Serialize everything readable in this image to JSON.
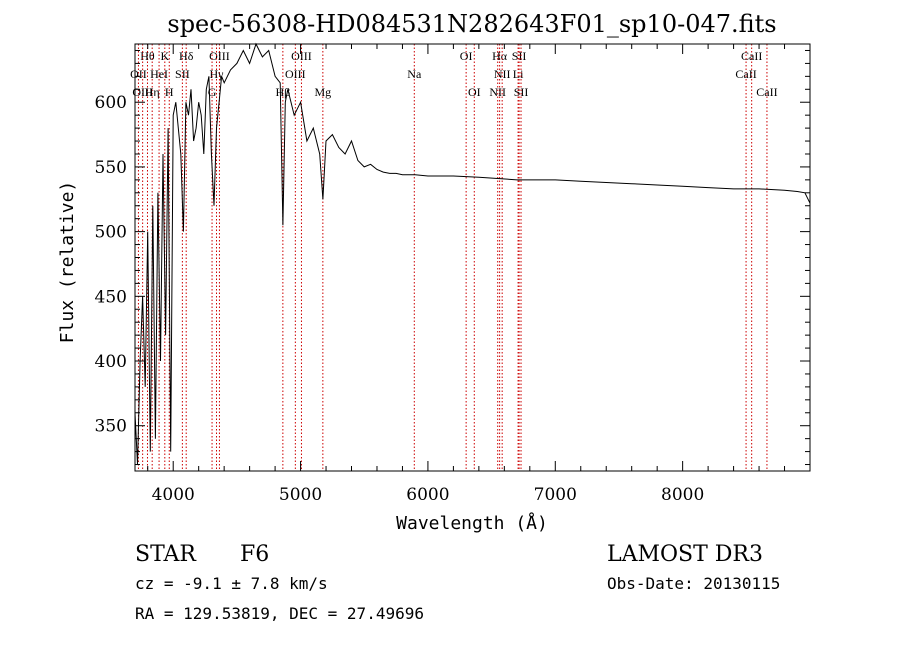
{
  "chart_data": {
    "type": "line",
    "title": "spec-56308-HD084531N282643F01_sp10-047.fits",
    "xlabel": "Wavelength (Å)",
    "ylabel": "Flux (relative)",
    "xlim": [
      3700,
      9000
    ],
    "ylim": [
      315,
      645
    ],
    "xticks": [
      4000,
      5000,
      6000,
      7000,
      8000
    ],
    "yticks": [
      350,
      400,
      450,
      500,
      550,
      600
    ],
    "line_color": "#000000",
    "marker_color": "#cc0000",
    "series": [
      {
        "x": [
          3700,
          3720,
          3740,
          3760,
          3780,
          3800,
          3820,
          3840,
          3860,
          3880,
          3900,
          3920,
          3940,
          3960,
          3980,
          4000,
          4020,
          4040,
          4060,
          4080,
          4100,
          4120,
          4140,
          4160,
          4180,
          4200,
          4220,
          4240,
          4260,
          4280,
          4300,
          4320,
          4340,
          4360,
          4380,
          4400,
          4450,
          4500,
          4550,
          4600,
          4650,
          4700,
          4750,
          4800,
          4840,
          4861,
          4880,
          4900,
          4950,
          5000,
          5050,
          5100,
          5150,
          5175,
          5200,
          5250,
          5300,
          5350,
          5400,
          5450,
          5500,
          5550,
          5600,
          5650,
          5700,
          5750,
          5800,
          5900,
          6000,
          6200,
          6400,
          6563,
          6700,
          7000,
          7200,
          7400,
          7600,
          7800,
          8000,
          8200,
          8400,
          8600,
          8800,
          8900,
          8960,
          9000
        ],
        "y": [
          360,
          320,
          400,
          450,
          380,
          500,
          330,
          520,
          340,
          530,
          400,
          560,
          420,
          580,
          330,
          590,
          600,
          580,
          560,
          500,
          600,
          590,
          610,
          570,
          580,
          600,
          590,
          560,
          610,
          620,
          560,
          520,
          580,
          600,
          620,
          615,
          625,
          630,
          640,
          630,
          645,
          635,
          640,
          620,
          615,
          505,
          600,
          610,
          590,
          600,
          570,
          580,
          560,
          525,
          570,
          575,
          565,
          560,
          570,
          555,
          550,
          552,
          548,
          546,
          545,
          545,
          544,
          544,
          543,
          543,
          542,
          541,
          540,
          540,
          539,
          538,
          537,
          536,
          535,
          534,
          533,
          533,
          532,
          531,
          530,
          522
        ]
      }
    ],
    "lines": [
      {
        "name": "Hθ",
        "x": 3798,
        "row": 0
      },
      {
        "name": "OII",
        "x": 3727,
        "row": 1
      },
      {
        "name": "OIII",
        "x": 3760,
        "row": 2
      },
      {
        "name": "Hη",
        "x": 3835,
        "row": 2
      },
      {
        "name": "HeI",
        "x": 3889,
        "row": 1
      },
      {
        "name": "K",
        "x": 3934,
        "row": 0
      },
      {
        "name": "SII",
        "x": 4072,
        "row": 1
      },
      {
        "name": "H",
        "x": 3969,
        "row": 2
      },
      {
        "name": "Hδ",
        "x": 4102,
        "row": 0
      },
      {
        "name": "OIII",
        "x": 4363,
        "row": 0
      },
      {
        "name": "Hγ",
        "x": 4340,
        "row": 1
      },
      {
        "name": "G",
        "x": 4305,
        "row": 2
      },
      {
        "name": "OIII",
        "x": 5007,
        "row": 0
      },
      {
        "name": "OIII",
        "x": 4959,
        "row": 1
      },
      {
        "name": "Hβ",
        "x": 4861,
        "row": 2
      },
      {
        "name": "Mg",
        "x": 5175,
        "row": 2
      },
      {
        "name": "Na",
        "x": 5893,
        "row": 1
      },
      {
        "name": "OI",
        "x": 6300,
        "row": 0
      },
      {
        "name": "OI",
        "x": 6364,
        "row": 2
      },
      {
        "name": "Hα",
        "x": 6563,
        "row": 0
      },
      {
        "name": "NII",
        "x": 6583,
        "row": 1
      },
      {
        "name": "NII",
        "x": 6548,
        "row": 2
      },
      {
        "name": "SII",
        "x": 6716,
        "row": 0
      },
      {
        "name": "Li",
        "x": 6708,
        "row": 1
      },
      {
        "name": "SII",
        "x": 6731,
        "row": 2
      },
      {
        "name": "CaII",
        "x": 8542,
        "row": 0
      },
      {
        "name": "CaII",
        "x": 8498,
        "row": 1
      },
      {
        "name": "CaII",
        "x": 8662,
        "row": 2
      }
    ]
  },
  "info": {
    "class_label": "STAR",
    "subclass": "F6",
    "survey": "LAMOST DR3",
    "cz": "cz = -9.1 ± 7.8 km/s",
    "obs_date": "Obs-Date: 20130115",
    "radec": "RA = 129.53819, DEC =  27.49696"
  }
}
